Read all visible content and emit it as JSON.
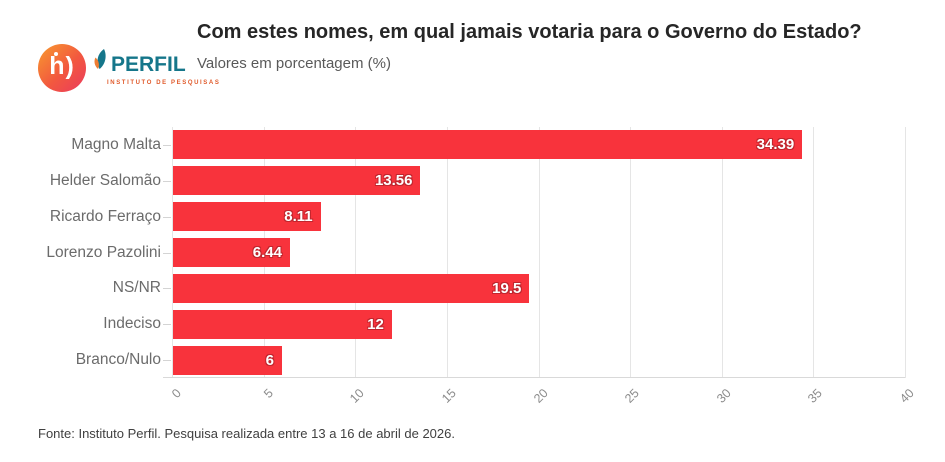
{
  "logo": {
    "monogram": "h)",
    "brand": "PERFIL",
    "tagline": "INSTITUTO DE PESQUISAS",
    "colors": {
      "circle_gradient_from": "#f89b2e",
      "circle_gradient_to": "#eb3a5e",
      "brand_teal": "#15768a",
      "tagline_orange": "#e05a2b"
    }
  },
  "header": {
    "title": "Com estes nomes, em qual jamais votaria para o Governo do Estado?",
    "subtitle": "Valores em porcentagem (%)"
  },
  "chart_data": {
    "type": "bar",
    "orientation": "horizontal",
    "title": "Com estes nomes, em qual jamais votaria para o Governo do Estado?",
    "subtitle": "Valores em porcentagem (%)",
    "categories": [
      "Magno Malta",
      "Helder Salomão",
      "Ricardo Ferraço",
      "Lorenzo Pazolini",
      "NS/NR",
      "Indeciso",
      "Branco/Nulo"
    ],
    "values": [
      34.39,
      13.56,
      8.11,
      6.44,
      19.5,
      12,
      6
    ],
    "value_labels": [
      "34.39",
      "13.56",
      "8.11",
      "6.44",
      "19.5",
      "12",
      "6"
    ],
    "xlim": [
      0,
      40
    ],
    "xticks": [
      0,
      5,
      10,
      15,
      20,
      25,
      30,
      35,
      40
    ],
    "xlabel": "",
    "ylabel": "",
    "grid": true,
    "bar_color": "#f8333c",
    "value_label_color": "#ffffff"
  },
  "footer": {
    "source": "Fonte: Instituto Perfil. Pesquisa realizada entre 13 a 16 de abril de 2026."
  }
}
